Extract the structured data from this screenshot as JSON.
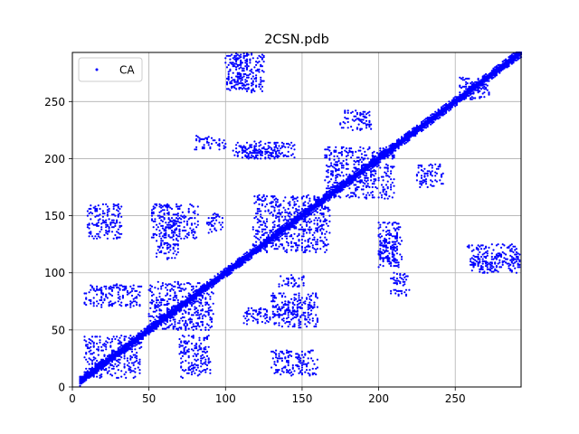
{
  "chart_data": {
    "type": "scatter",
    "title": "2CSN.pdb",
    "xlabel": "",
    "ylabel": "",
    "xlim": [
      0,
      293
    ],
    "ylim": [
      0,
      293
    ],
    "xticks": [
      0,
      50,
      100,
      150,
      200,
      250
    ],
    "yticks": [
      0,
      50,
      100,
      150,
      200,
      250
    ],
    "grid": true,
    "legend": {
      "position": "upper-left",
      "entries": [
        "CA"
      ]
    },
    "series": [
      {
        "name": "CA",
        "color": "#0000ff",
        "marker": "point",
        "diagonal_band": {
          "from": 5,
          "to": 293,
          "halfwidth": 4
        },
        "blocks": [
          [
            8,
            45,
            8,
            45
          ],
          [
            8,
            45,
            70,
            90
          ],
          [
            70,
            90,
            8,
            45
          ],
          [
            50,
            92,
            50,
            92
          ],
          [
            10,
            32,
            130,
            160
          ],
          [
            130,
            160,
            10,
            32
          ],
          [
            52,
            82,
            130,
            160
          ],
          [
            130,
            160,
            52,
            82
          ],
          [
            88,
            98,
            135,
            152
          ],
          [
            135,
            152,
            88,
            98
          ],
          [
            118,
            168,
            118,
            168
          ],
          [
            105,
            145,
            200,
            215
          ],
          [
            200,
            215,
            105,
            145
          ],
          [
            112,
            130,
            55,
            70
          ],
          [
            55,
            70,
            112,
            130
          ],
          [
            165,
            210,
            165,
            210
          ],
          [
            175,
            195,
            225,
            242
          ],
          [
            225,
            242,
            175,
            195
          ],
          [
            200,
            212,
            110,
            135
          ],
          [
            110,
            135,
            200,
            212
          ],
          [
            208,
            220,
            80,
            100
          ],
          [
            80,
            100,
            208,
            220
          ],
          [
            252,
            272,
            252,
            272
          ],
          [
            258,
            292,
            105,
            125
          ],
          [
            105,
            125,
            258,
            292
          ],
          [
            100,
            115,
            260,
            292
          ],
          [
            260,
            292,
            100,
            115
          ],
          [
            130,
            148,
            60,
            70
          ],
          [
            60,
            70,
            130,
            148
          ]
        ]
      }
    ]
  }
}
